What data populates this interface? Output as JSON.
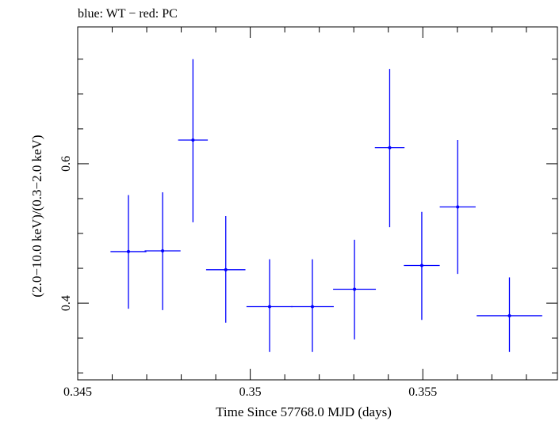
{
  "chart_data": {
    "type": "scatter",
    "title": "blue: WT − red: PC",
    "xlabel": "Time Since 57768.0 MJD (days)",
    "ylabel": "(2.0−10.0 keV)/(0.3−2.0 keV)",
    "xlim": [
      0.345,
      0.3589
    ],
    "ylim": [
      0.29,
      0.7963
    ],
    "x_ticks": [
      0.345,
      0.35,
      0.355
    ],
    "x_tick_labels": [
      "0.345",
      "0.35",
      "0.355"
    ],
    "y_ticks": [
      0.4,
      0.6
    ],
    "y_tick_labels": [
      "0.4",
      "0.6"
    ],
    "grid": false,
    "color": "#0000ff",
    "series": [
      {
        "points": [
          {
            "x": 0.34647,
            "y": 0.474,
            "xerr": 0.00052,
            "ylo": 0.392,
            "yhi": 0.555
          },
          {
            "x": 0.34746,
            "y": 0.475,
            "xerr": 0.00052,
            "ylo": 0.39,
            "yhi": 0.559
          },
          {
            "x": 0.34834,
            "y": 0.634,
            "xerr": 0.00043,
            "ylo": 0.516,
            "yhi": 0.75
          },
          {
            "x": 0.34929,
            "y": 0.448,
            "xerr": 0.00057,
            "ylo": 0.372,
            "yhi": 0.525
          },
          {
            "x": 0.35056,
            "y": 0.395,
            "xerr": 0.00067,
            "ylo": 0.33,
            "yhi": 0.463
          },
          {
            "x": 0.3518,
            "y": 0.395,
            "xerr": 0.00062,
            "ylo": 0.33,
            "yhi": 0.463
          },
          {
            "x": 0.35302,
            "y": 0.42,
            "xerr": 0.00062,
            "ylo": 0.348,
            "yhi": 0.491
          },
          {
            "x": 0.35404,
            "y": 0.623,
            "xerr": 0.00043,
            "ylo": 0.509,
            "yhi": 0.736
          },
          {
            "x": 0.35497,
            "y": 0.454,
            "xerr": 0.00052,
            "ylo": 0.376,
            "yhi": 0.531
          },
          {
            "x": 0.35601,
            "y": 0.538,
            "xerr": 0.00052,
            "ylo": 0.442,
            "yhi": 0.634
          },
          {
            "x": 0.35751,
            "y": 0.382,
            "xerr": 0.00095,
            "ylo": 0.33,
            "yhi": 0.437
          }
        ]
      }
    ]
  }
}
